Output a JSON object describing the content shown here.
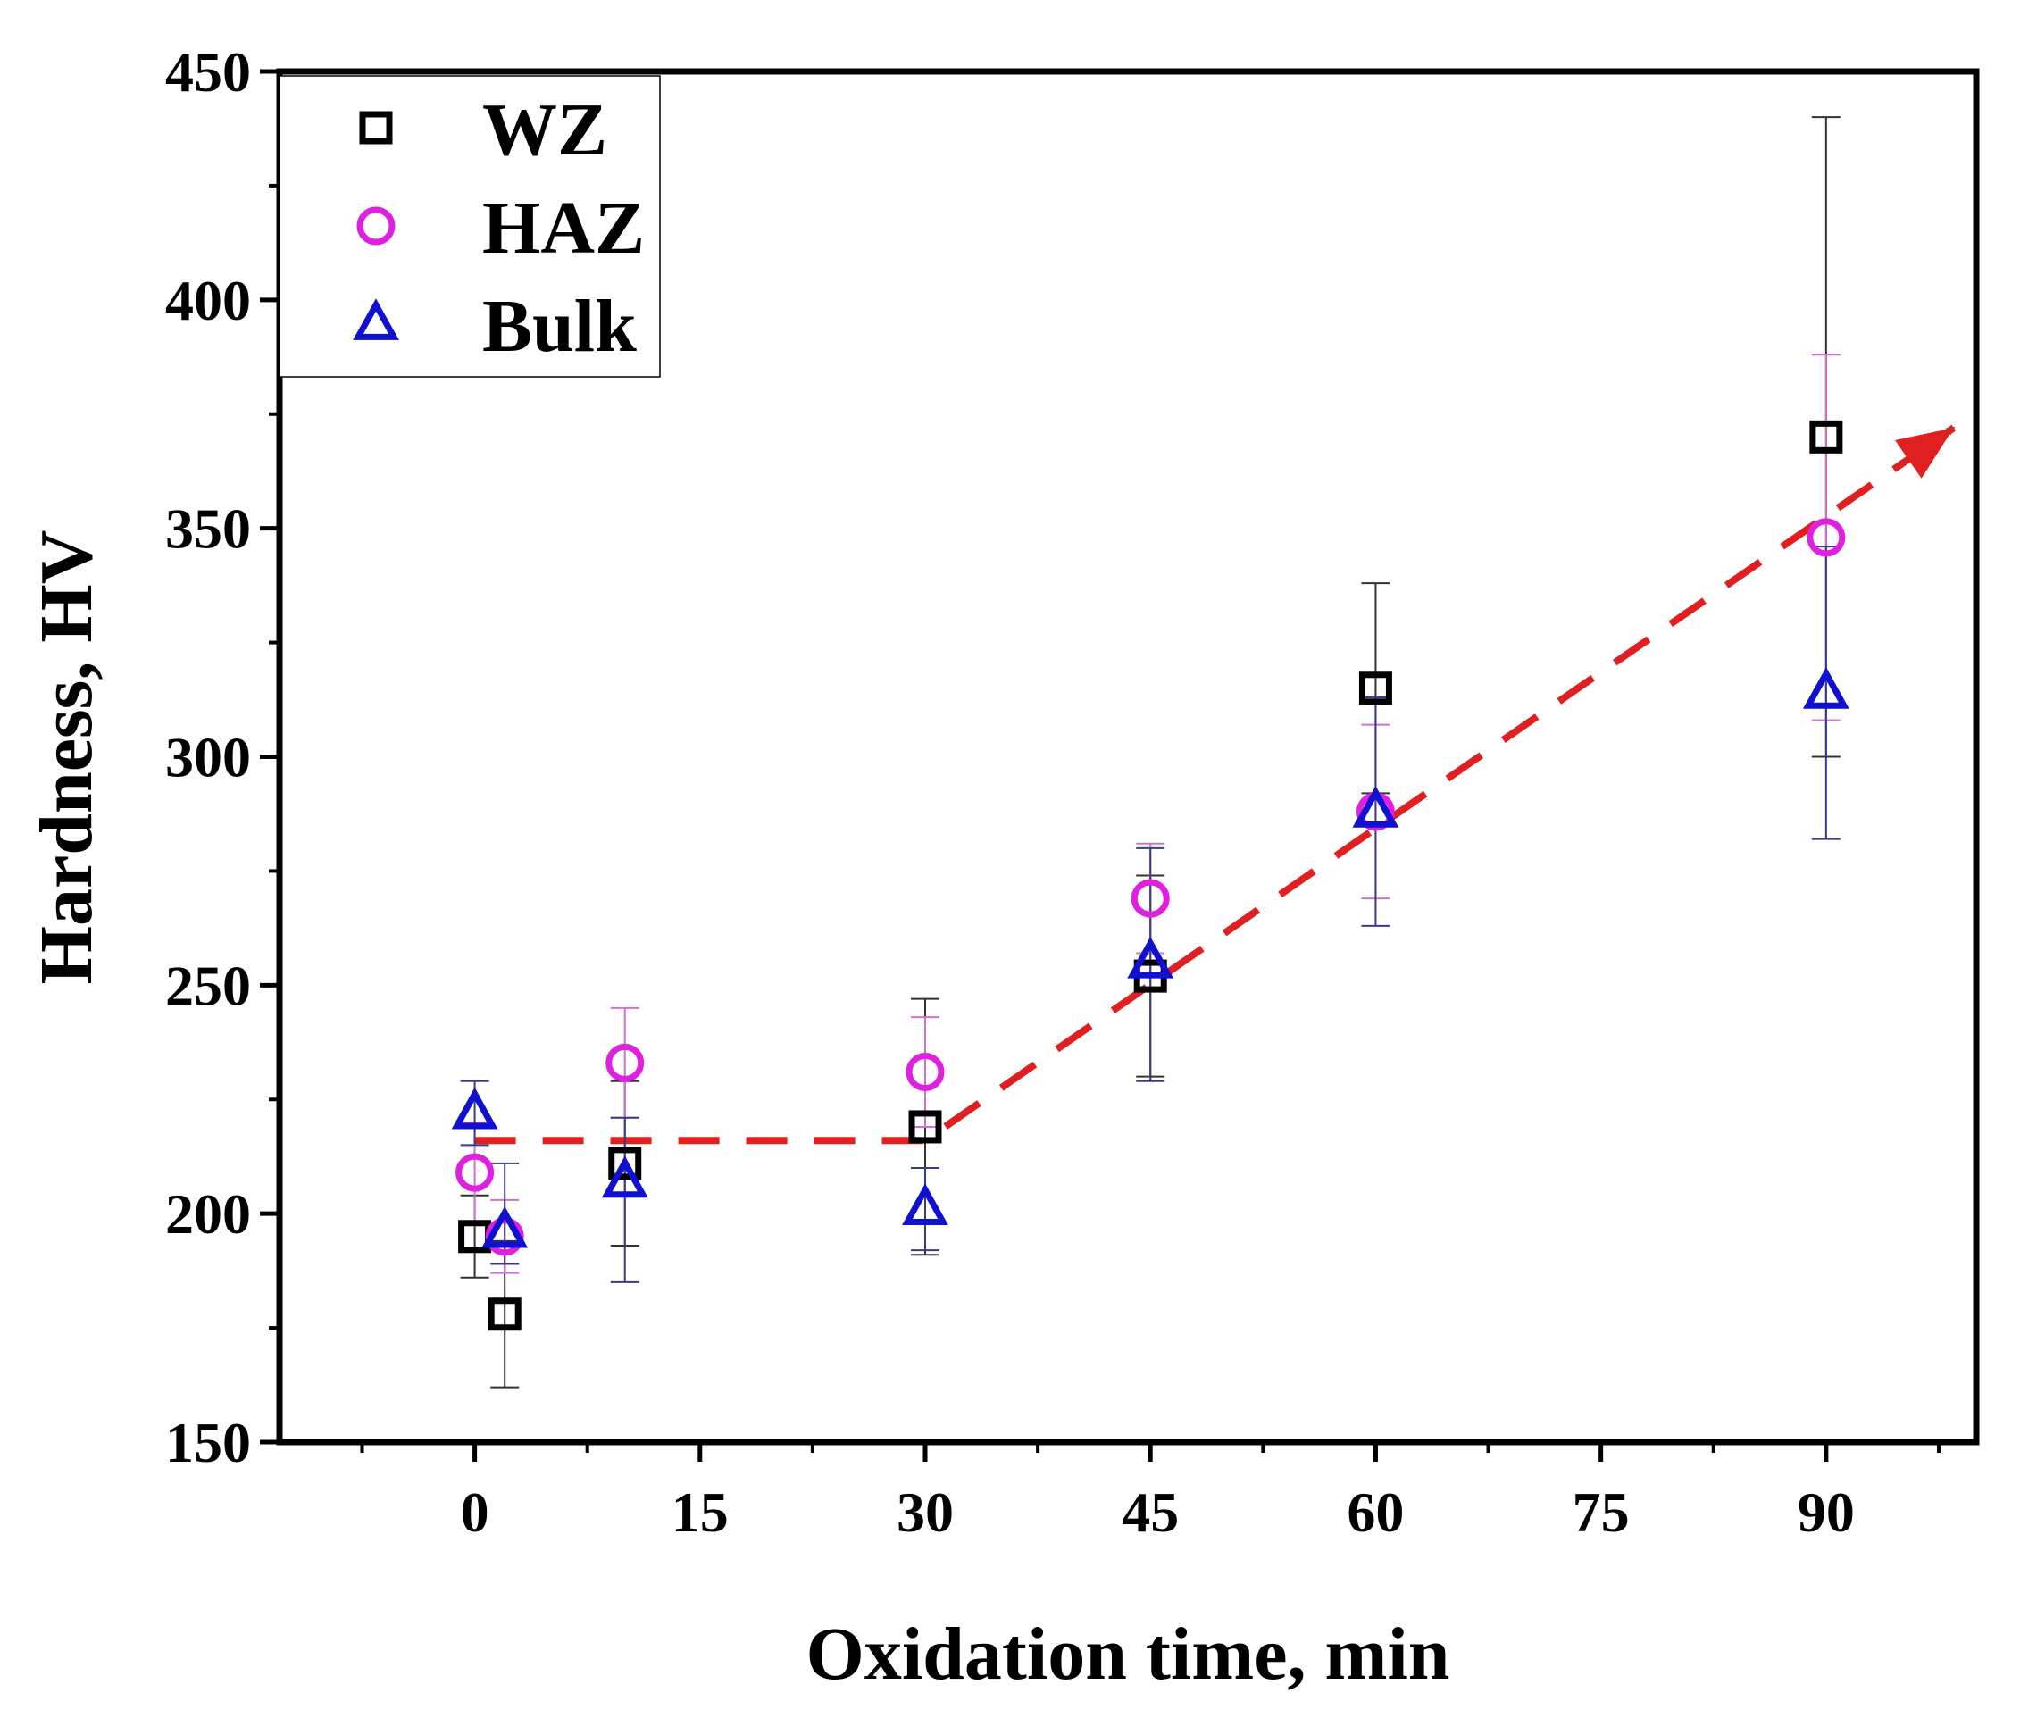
{
  "chart_data": {
    "type": "scatter",
    "title": "",
    "xlabel": "Oxidation time, min",
    "ylabel": "Hardness, HV",
    "xlim": [
      -13,
      100
    ],
    "ylim": [
      150,
      450
    ],
    "xticks": [
      0,
      15,
      30,
      45,
      60,
      75,
      90
    ],
    "yticks": [
      150,
      200,
      250,
      300,
      350,
      400,
      450
    ],
    "legend_position": "top-left",
    "series": [
      {
        "name": "WZ",
        "marker": "square",
        "color": "#000000",
        "errorColor": "#333333",
        "points": [
          {
            "x": 0,
            "y": 195,
            "lo": 186,
            "hi": 204
          },
          {
            "x": 2,
            "y": 178,
            "lo": 162,
            "hi": 194
          },
          {
            "x": 10,
            "y": 211,
            "lo": 193,
            "hi": 229
          },
          {
            "x": 30,
            "y": 219,
            "lo": 191,
            "hi": 247
          },
          {
            "x": 45,
            "y": 252,
            "lo": 230,
            "hi": 274
          },
          {
            "x": 60,
            "y": 315,
            "lo": 292,
            "hi": 338
          },
          {
            "x": 90,
            "y": 370,
            "lo": 300,
            "hi": 440
          }
        ]
      },
      {
        "name": "HAZ",
        "marker": "circle",
        "color": "#e020e0",
        "errorColor": "#d070d0",
        "points": [
          {
            "x": 0,
            "y": 209,
            "lo": 198,
            "hi": 220
          },
          {
            "x": 2,
            "y": 195,
            "lo": 187,
            "hi": 203
          },
          {
            "x": 10,
            "y": 233,
            "lo": 221,
            "hi": 245
          },
          {
            "x": 30,
            "y": 231,
            "lo": 219,
            "hi": 243
          },
          {
            "x": 45,
            "y": 269,
            "lo": 257,
            "hi": 281
          },
          {
            "x": 60,
            "y": 288,
            "lo": 269,
            "hi": 307
          },
          {
            "x": 90,
            "y": 348,
            "lo": 308,
            "hi": 388
          }
        ]
      },
      {
        "name": "Bulk",
        "marker": "triangle",
        "color": "#1010d0",
        "errorColor": "#3a3a8a",
        "points": [
          {
            "x": 0,
            "y": 222,
            "lo": 215,
            "hi": 229
          },
          {
            "x": 2,
            "y": 196,
            "lo": 189,
            "hi": 211
          },
          {
            "x": 10,
            "y": 207,
            "lo": 185,
            "hi": 221
          },
          {
            "x": 30,
            "y": 201,
            "lo": 192,
            "hi": 210
          },
          {
            "x": 45,
            "y": 255,
            "lo": 229,
            "hi": 280
          },
          {
            "x": 60,
            "y": 288,
            "lo": 263,
            "hi": 313
          },
          {
            "x": 90,
            "y": 314,
            "lo": 282,
            "hi": 346
          }
        ]
      }
    ],
    "trend_line": {
      "color": "#e02020",
      "style": "dashed",
      "arrow": true,
      "points": [
        [
          0,
          216
        ],
        [
          30,
          216
        ],
        [
          98.5,
          372
        ]
      ]
    }
  }
}
